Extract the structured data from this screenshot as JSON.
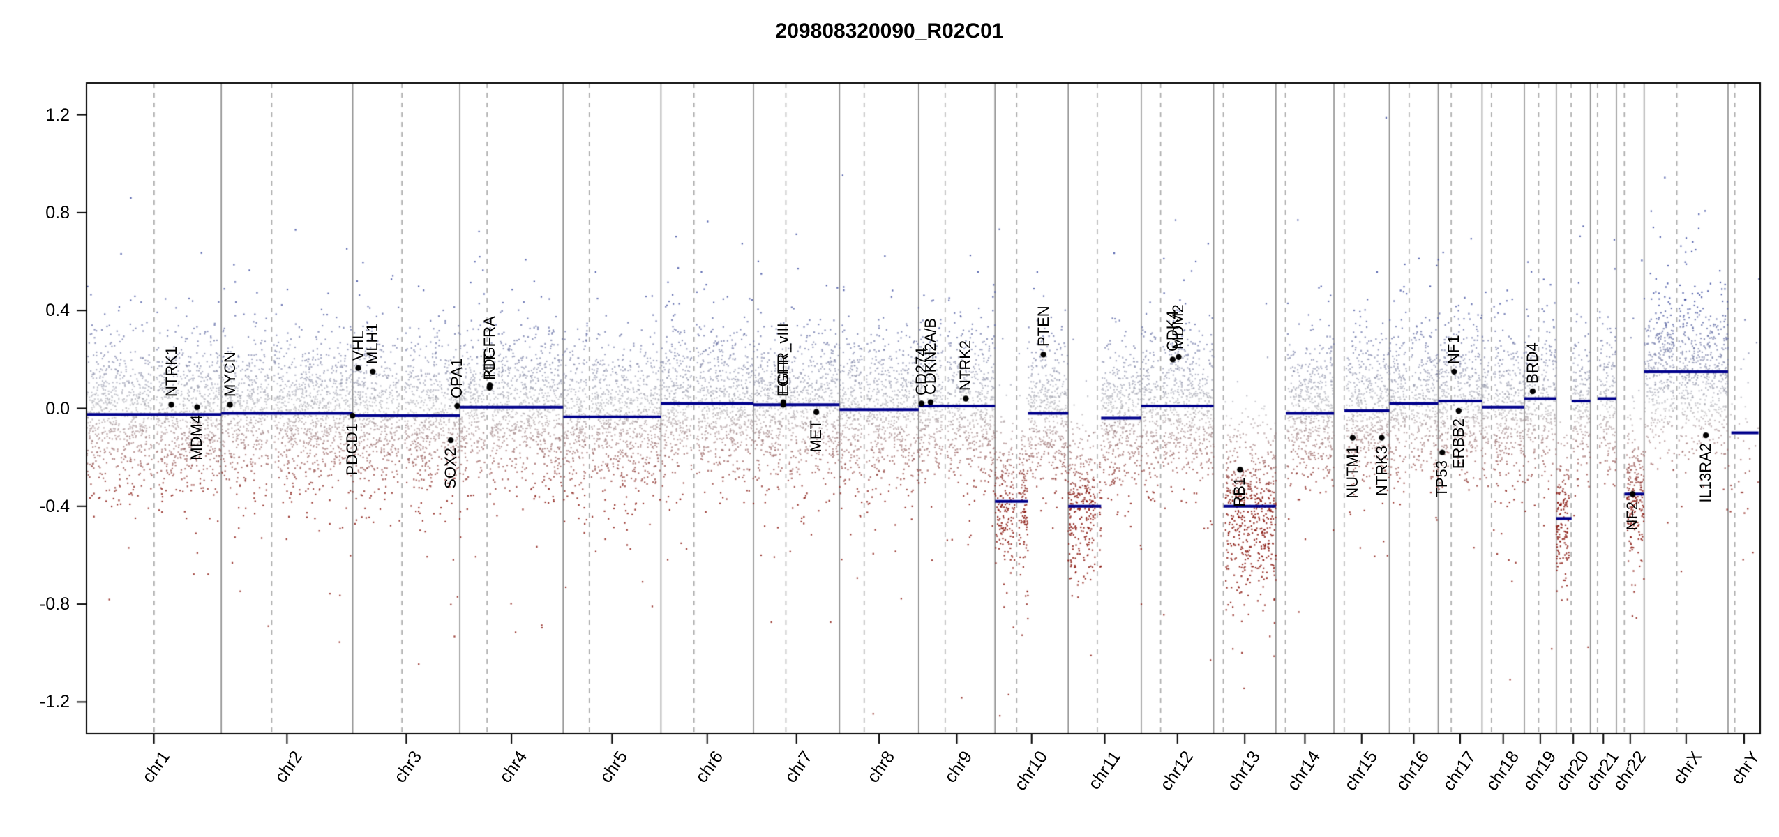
{
  "title": "209808320090_R02C01",
  "axes": {
    "y_ticks": [
      {
        "label": "1.2",
        "value": 1.2
      },
      {
        "label": "0.8",
        "value": 0.8
      },
      {
        "label": "0.4",
        "value": 0.4
      },
      {
        "label": "0.0",
        "value": 0.0
      },
      {
        "label": "-0.4",
        "value": -0.4
      },
      {
        "label": "-0.8",
        "value": -0.8
      },
      {
        "label": "-1.2",
        "value": -1.2
      }
    ],
    "y_range": [
      -1.33,
      1.33
    ]
  },
  "colors": {
    "background": "#ffffff",
    "axis": "#000000",
    "segment": "#00008b",
    "chrom_divider": "#8c8c8c",
    "centromere_line": "#a9a9a9",
    "gain_point": "#3a4aa0",
    "loss_point": "#8b1a12",
    "neutral_point": "#a5a5aa",
    "gene_marker": "#000000"
  },
  "chart_data": {
    "type": "scatter",
    "title": "209808320090_R02C01",
    "ylim": [
      -1.33,
      1.33
    ],
    "y_tick_values": [
      -1.2,
      -0.8,
      -0.4,
      0.0,
      0.4,
      0.8,
      1.2
    ],
    "x_categories": [
      "chr1",
      "chr2",
      "chr3",
      "chr4",
      "chr5",
      "chr6",
      "chr7",
      "chr8",
      "chr9",
      "chr10",
      "chr11",
      "chr12",
      "chr13",
      "chr14",
      "chr15",
      "chr16",
      "chr17",
      "chr18",
      "chr19",
      "chr20",
      "chr21",
      "chr22",
      "chrX",
      "chrY"
    ],
    "chromosomes": [
      {
        "name": "chr1",
        "length_mb": 249.25,
        "centromere_mb": 125.0,
        "acrocentric": false,
        "segments": [
          {
            "start": 0,
            "end": 1,
            "value": -0.025
          }
        ]
      },
      {
        "name": "chr2",
        "length_mb": 243.2,
        "centromere_mb": 93.3,
        "acrocentric": false,
        "segments": [
          {
            "start": 0,
            "end": 1,
            "value": -0.02
          }
        ]
      },
      {
        "name": "chr3",
        "length_mb": 198.02,
        "centromere_mb": 91.0,
        "acrocentric": false,
        "segments": [
          {
            "start": 0,
            "end": 1,
            "value": -0.03
          }
        ]
      },
      {
        "name": "chr4",
        "length_mb": 191.15,
        "centromere_mb": 50.4,
        "acrocentric": false,
        "segments": [
          {
            "start": 0,
            "end": 1,
            "value": 0.005
          }
        ]
      },
      {
        "name": "chr5",
        "length_mb": 180.92,
        "centromere_mb": 48.4,
        "acrocentric": false,
        "segments": [
          {
            "start": 0,
            "end": 1,
            "value": -0.035
          }
        ]
      },
      {
        "name": "chr6",
        "length_mb": 171.12,
        "centromere_mb": 61.0,
        "acrocentric": false,
        "segments": [
          {
            "start": 0,
            "end": 1,
            "value": 0.02
          }
        ]
      },
      {
        "name": "chr7",
        "length_mb": 159.14,
        "centromere_mb": 59.9,
        "acrocentric": false,
        "segments": [
          {
            "start": 0,
            "end": 1,
            "value": 0.015
          }
        ]
      },
      {
        "name": "chr8",
        "length_mb": 146.36,
        "centromere_mb": 45.6,
        "acrocentric": false,
        "segments": [
          {
            "start": 0,
            "end": 1,
            "value": -0.005
          }
        ]
      },
      {
        "name": "chr9",
        "length_mb": 141.21,
        "centromere_mb": 49.0,
        "acrocentric": false,
        "segments": [
          {
            "start": 0,
            "end": 1,
            "value": 0.01
          }
        ]
      },
      {
        "name": "chr10",
        "length_mb": 135.53,
        "centromere_mb": 40.2,
        "acrocentric": false,
        "segments": [
          {
            "start": 0,
            "end": 0.45,
            "value": -0.38,
            "sd": 0.16
          },
          {
            "start": 0.45,
            "end": 1,
            "value": -0.02
          }
        ]
      },
      {
        "name": "chr11",
        "length_mb": 135.01,
        "centromere_mb": 53.7,
        "acrocentric": false,
        "segments": [
          {
            "start": 0,
            "end": 0.45,
            "value": -0.4,
            "sd": 0.16
          },
          {
            "start": 0.45,
            "end": 1,
            "value": -0.04
          }
        ]
      },
      {
        "name": "chr12",
        "length_mb": 133.85,
        "centromere_mb": 35.8,
        "acrocentric": false,
        "segments": [
          {
            "start": 0,
            "end": 1,
            "value": 0.01
          }
        ]
      },
      {
        "name": "chr13",
        "length_mb": 115.17,
        "centromere_mb": 17.9,
        "acrocentric": true,
        "segments": [
          {
            "start": 0.16,
            "end": 1,
            "value": -0.4,
            "sd": 0.18
          }
        ]
      },
      {
        "name": "chr14",
        "length_mb": 107.35,
        "centromere_mb": 17.6,
        "acrocentric": true,
        "segments": [
          {
            "start": 0.17,
            "end": 1,
            "value": -0.02
          }
        ]
      },
      {
        "name": "chr15",
        "length_mb": 102.53,
        "centromere_mb": 19.0,
        "acrocentric": true,
        "segments": [
          {
            "start": 0.19,
            "end": 1,
            "value": -0.01
          }
        ]
      },
      {
        "name": "chr16",
        "length_mb": 90.35,
        "centromere_mb": 36.6,
        "acrocentric": false,
        "segments": [
          {
            "start": 0,
            "end": 1,
            "value": 0.02
          }
        ]
      },
      {
        "name": "chr17",
        "length_mb": 81.2,
        "centromere_mb": 24.0,
        "acrocentric": false,
        "segments": [
          {
            "start": 0,
            "end": 1,
            "value": 0.03
          }
        ]
      },
      {
        "name": "chr18",
        "length_mb": 78.08,
        "centromere_mb": 17.2,
        "acrocentric": false,
        "segments": [
          {
            "start": 0,
            "end": 1,
            "value": 0.005
          }
        ]
      },
      {
        "name": "chr19",
        "length_mb": 59.13,
        "centromere_mb": 26.5,
        "acrocentric": false,
        "segments": [
          {
            "start": 0,
            "end": 1,
            "value": 0.04
          }
        ]
      },
      {
        "name": "chr20",
        "length_mb": 63.03,
        "centromere_mb": 27.5,
        "acrocentric": false,
        "segments": [
          {
            "start": 0,
            "end": 0.45,
            "value": -0.45,
            "sd": 0.13
          },
          {
            "start": 0.45,
            "end": 1,
            "value": 0.03
          }
        ]
      },
      {
        "name": "chr21",
        "length_mb": 48.13,
        "centromere_mb": 13.2,
        "acrocentric": true,
        "segments": [
          {
            "start": 0.28,
            "end": 1,
            "value": 0.04
          }
        ]
      },
      {
        "name": "chr22",
        "length_mb": 51.3,
        "centromere_mb": 14.7,
        "acrocentric": true,
        "segments": [
          {
            "start": 0.29,
            "end": 1,
            "value": -0.35,
            "sd": 0.15
          }
        ]
      },
      {
        "name": "chrX",
        "length_mb": 155.27,
        "centromere_mb": 60.6,
        "acrocentric": false,
        "segments": [
          {
            "start": 0,
            "end": 1,
            "value": 0.15,
            "sd": 0.16
          }
        ]
      },
      {
        "name": "chrY",
        "length_mb": 59.37,
        "centromere_mb": 12.5,
        "acrocentric": false,
        "density_per_mb": 0.8,
        "segments": [
          {
            "start": 0.1,
            "end": 0.95,
            "value": -0.1,
            "sd": 0.22
          }
        ]
      }
    ],
    "genes": [
      {
        "name": "NTRK1",
        "chr": "chr1",
        "pos_mb": 156.8,
        "value": 0.015,
        "label_side": "above"
      },
      {
        "name": "MDM4",
        "chr": "chr1",
        "pos_mb": 204.5,
        "value": 0.005,
        "label_side": "below"
      },
      {
        "name": "MYCN",
        "chr": "chr2",
        "pos_mb": 16.1,
        "value": 0.015,
        "label_side": "above"
      },
      {
        "name": "PDCD1",
        "chr": "chr2",
        "pos_mb": 242.8,
        "value": -0.03,
        "label_side": "below"
      },
      {
        "name": "VHL",
        "chr": "chr3",
        "pos_mb": 10.2,
        "value": 0.165,
        "label_side": "above"
      },
      {
        "name": "MLH1",
        "chr": "chr3",
        "pos_mb": 37.0,
        "value": 0.15,
        "label_side": "above"
      },
      {
        "name": "SOX2",
        "chr": "chr3",
        "pos_mb": 181.4,
        "value": -0.13,
        "label_side": "below"
      },
      {
        "name": "OPA1",
        "chr": "chr3",
        "pos_mb": 193.3,
        "value": 0.01,
        "label_side": "above"
      },
      {
        "name": "PDGFRA",
        "chr": "chr4",
        "pos_mb": 55.1,
        "value": 0.085,
        "label_side": "above"
      },
      {
        "name": "KIT",
        "chr": "chr4",
        "pos_mb": 55.6,
        "value": 0.095,
        "label_side": "above"
      },
      {
        "name": "EGFR",
        "chr": "chr7",
        "pos_mb": 55.1,
        "value": 0.015,
        "label_side": "above"
      },
      {
        "name": "EGFR_vIII",
        "chr": "chr7",
        "pos_mb": 55.3,
        "value": 0.025,
        "label_side": "above"
      },
      {
        "name": "MET",
        "chr": "chr7",
        "pos_mb": 116.3,
        "value": -0.015,
        "label_side": "below"
      },
      {
        "name": "CD274",
        "chr": "chr9",
        "pos_mb": 5.45,
        "value": 0.02,
        "label_side": "above"
      },
      {
        "name": "CDKN2A/B",
        "chr": "chr9",
        "pos_mb": 21.97,
        "value": 0.025,
        "label_side": "above"
      },
      {
        "name": "NTRK2",
        "chr": "chr9",
        "pos_mb": 87.3,
        "value": 0.04,
        "label_side": "above"
      },
      {
        "name": "PTEN",
        "chr": "chr10",
        "pos_mb": 89.6,
        "value": 0.22,
        "label_side": "above"
      },
      {
        "name": "CDK4",
        "chr": "chr12",
        "pos_mb": 58.1,
        "value": 0.2,
        "label_side": "above"
      },
      {
        "name": "MDM2",
        "chr": "chr12",
        "pos_mb": 69.2,
        "value": 0.21,
        "label_side": "above"
      },
      {
        "name": "RB1",
        "chr": "chr13",
        "pos_mb": 48.9,
        "value": -0.25,
        "label_side": "below"
      },
      {
        "name": "NUTM1",
        "chr": "chr15",
        "pos_mb": 34.6,
        "value": -0.12,
        "label_side": "below"
      },
      {
        "name": "NTRK3",
        "chr": "chr15",
        "pos_mb": 88.4,
        "value": -0.12,
        "label_side": "below"
      },
      {
        "name": "TP53",
        "chr": "chr17",
        "pos_mb": 7.57,
        "value": -0.18,
        "label_side": "below"
      },
      {
        "name": "NF1",
        "chr": "chr17",
        "pos_mb": 29.4,
        "value": 0.15,
        "label_side": "above"
      },
      {
        "name": "ERBB2",
        "chr": "chr17",
        "pos_mb": 37.8,
        "value": -0.01,
        "label_side": "below"
      },
      {
        "name": "BRD4",
        "chr": "chr19",
        "pos_mb": 15.4,
        "value": 0.07,
        "label_side": "above"
      },
      {
        "name": "NF2",
        "chr": "chr22",
        "pos_mb": 30.0,
        "value": -0.35,
        "label_side": "below"
      },
      {
        "name": "IL13RA2",
        "chr": "chrX",
        "pos_mb": 114.2,
        "value": -0.11,
        "label_side": "below"
      }
    ],
    "scatter": {
      "points_per_mb": 6,
      "noise_sd": 0.15,
      "tail_fracs": [
        0.08,
        0.02
      ],
      "tail_mults": [
        1.8,
        3.0
      ]
    }
  }
}
